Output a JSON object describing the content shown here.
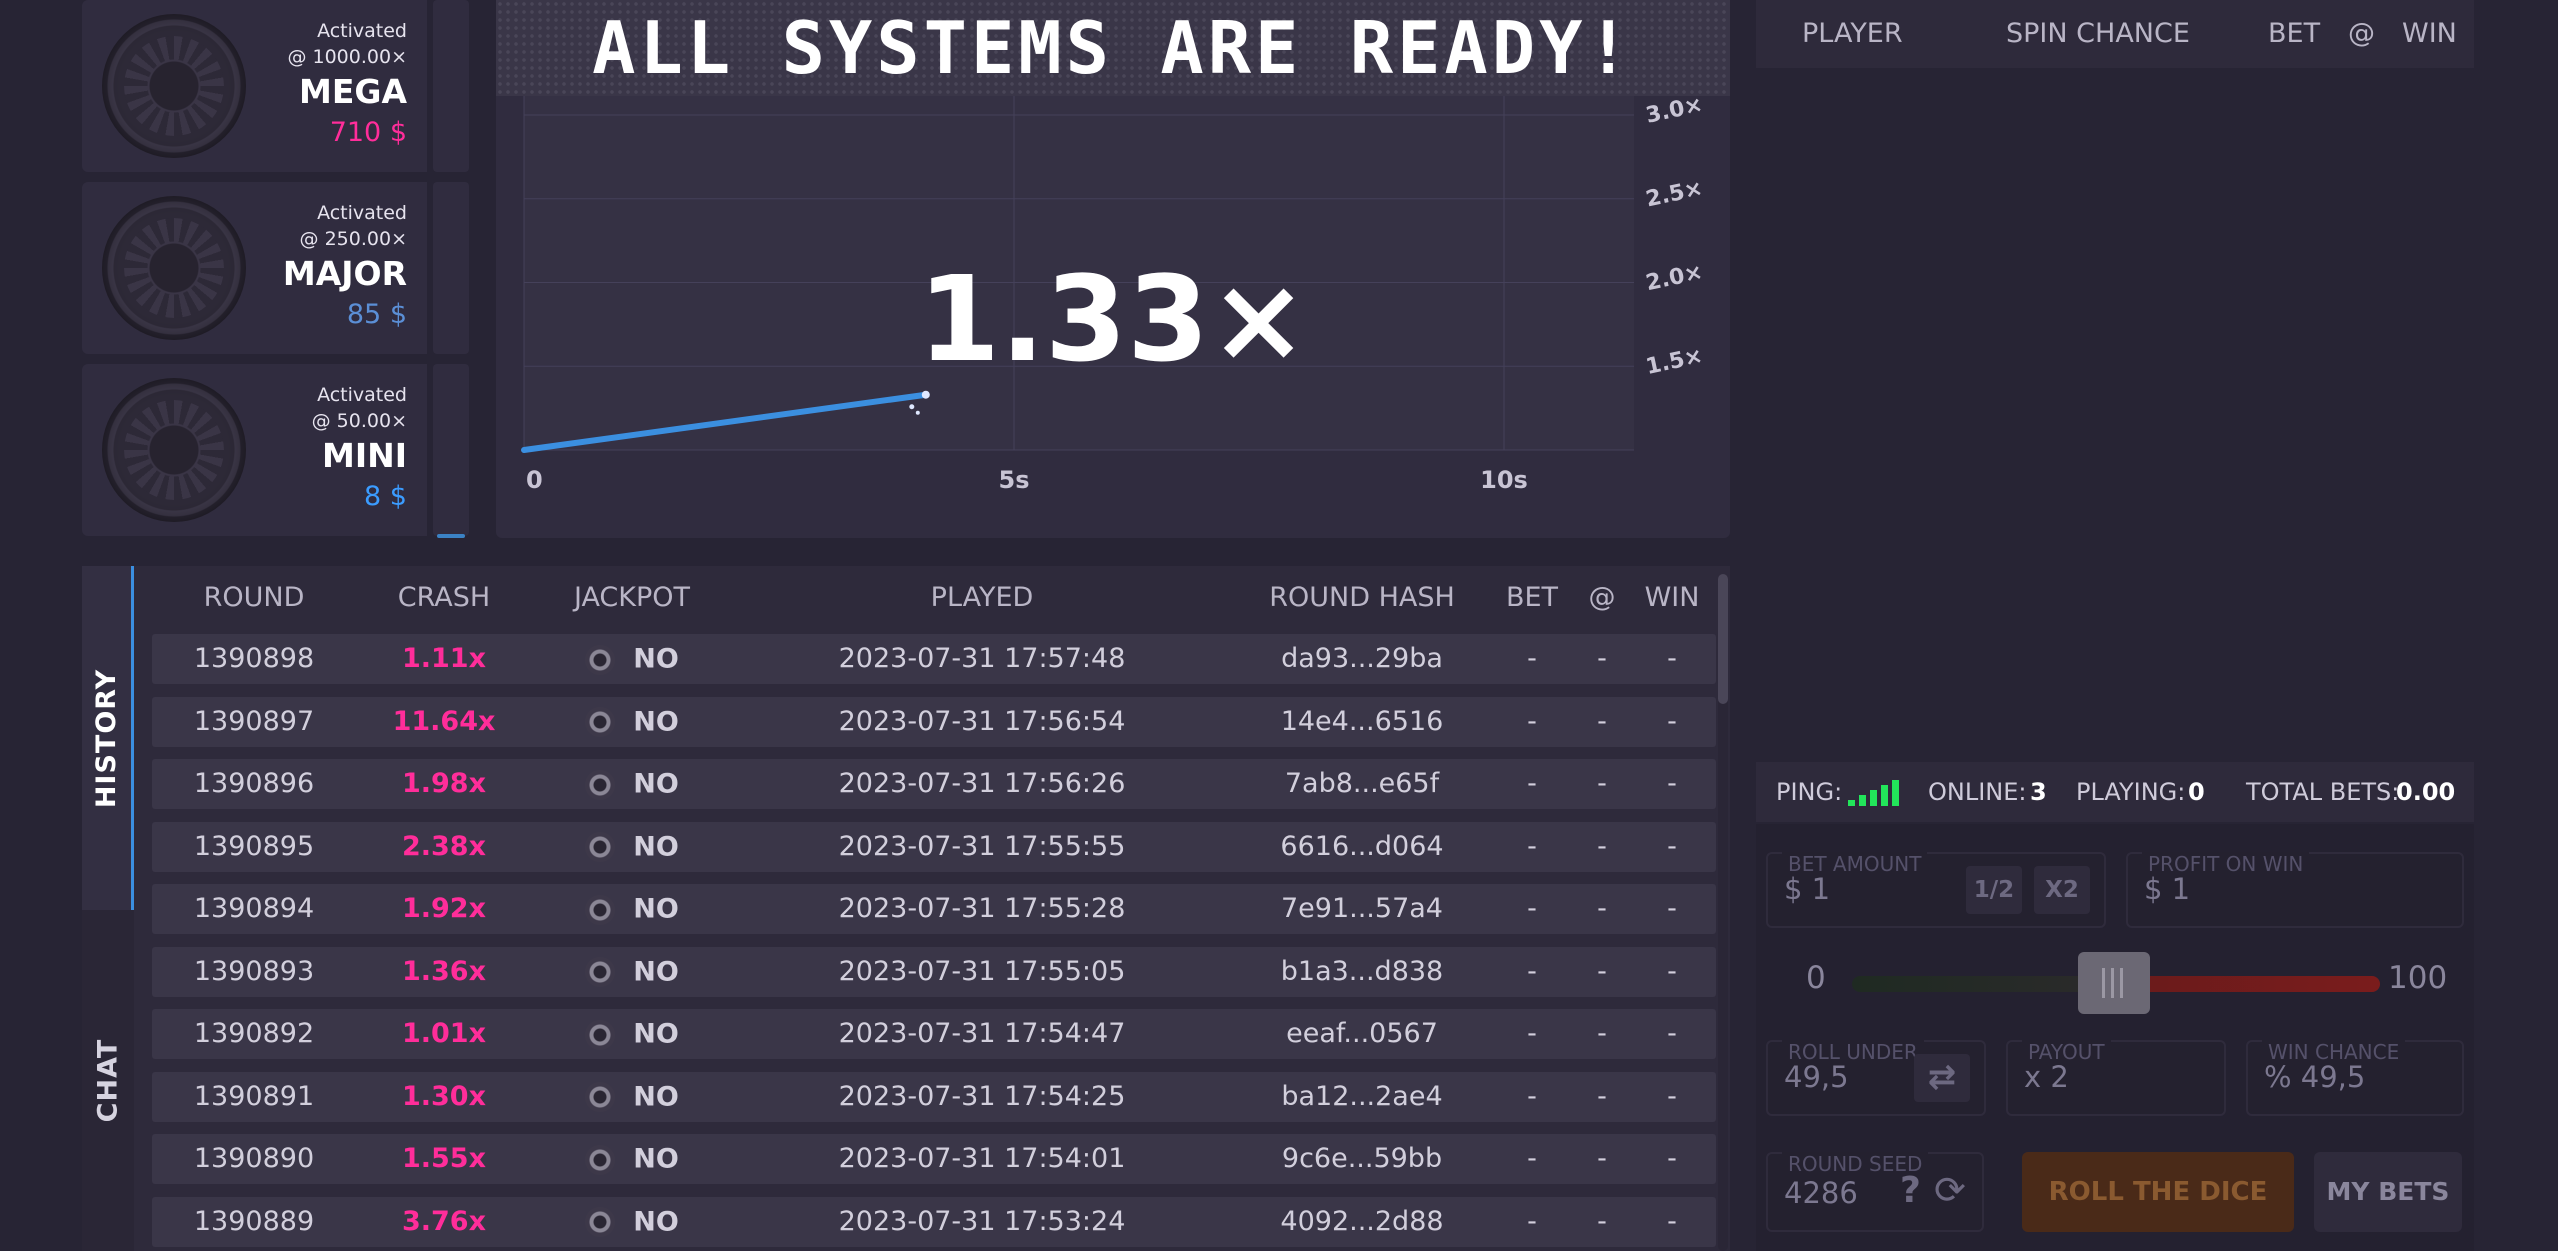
{
  "jackpots": [
    {
      "status": "Activated",
      "threshold": "@ 1000.00×",
      "name": "MEGA",
      "amount": "710 $",
      "color": "#ff2d9a"
    },
    {
      "status": "Activated",
      "threshold": "@ 250.00×",
      "name": "MAJOR",
      "amount": "85 $",
      "color": "#5b8fd6"
    },
    {
      "status": "Activated",
      "threshold": "@ 50.00×",
      "name": "MINI",
      "amount": "8 $",
      "color": "#3b9cff"
    }
  ],
  "banner": "ALL SYSTEMS ARE READY!",
  "graph": {
    "multiplier": "1.33×",
    "x_ticks": [
      "0",
      "5s",
      "10s"
    ],
    "y_ticks": [
      "3.0×",
      "2.5×",
      "2.0×",
      "1.5×"
    ]
  },
  "chart_data": {
    "type": "line",
    "x_ticks": [
      "0",
      "5s",
      "10s"
    ],
    "y_ticks": [
      "1.5×",
      "2.0×",
      "2.5×",
      "3.0×"
    ],
    "series": [
      {
        "x": [
          0,
          4.1
        ],
        "y": [
          1.0,
          1.33
        ],
        "color": "#3b8fe0"
      }
    ]
  },
  "bets_header": {
    "player": "PLAYER",
    "spin_chance": "SPIN CHANCE",
    "bet": "BET",
    "at": "@",
    "win": "WIN"
  },
  "tabs": {
    "history": "HISTORY",
    "chat": "CHAT"
  },
  "history": {
    "columns": [
      "ROUND",
      "CRASH",
      "JACKPOT",
      "PLAYED",
      "ROUND HASH",
      "BET",
      "@",
      "WIN"
    ],
    "rows": [
      {
        "round": "1390898",
        "crash": "1.11x",
        "jackpot": "NO",
        "played": "2023-07-31 17:57:48",
        "hash": "da93...29ba",
        "bet": "-",
        "at": "-",
        "win": "-"
      },
      {
        "round": "1390897",
        "crash": "11.64x",
        "jackpot": "NO",
        "played": "2023-07-31 17:56:54",
        "hash": "14e4...6516",
        "bet": "-",
        "at": "-",
        "win": "-"
      },
      {
        "round": "1390896",
        "crash": "1.98x",
        "jackpot": "NO",
        "played": "2023-07-31 17:56:26",
        "hash": "7ab8...e65f",
        "bet": "-",
        "at": "-",
        "win": "-"
      },
      {
        "round": "1390895",
        "crash": "2.38x",
        "jackpot": "NO",
        "played": "2023-07-31 17:55:55",
        "hash": "6616...d064",
        "bet": "-",
        "at": "-",
        "win": "-"
      },
      {
        "round": "1390894",
        "crash": "1.92x",
        "jackpot": "NO",
        "played": "2023-07-31 17:55:28",
        "hash": "7e91...57a4",
        "bet": "-",
        "at": "-",
        "win": "-"
      },
      {
        "round": "1390893",
        "crash": "1.36x",
        "jackpot": "NO",
        "played": "2023-07-31 17:55:05",
        "hash": "b1a3...d838",
        "bet": "-",
        "at": "-",
        "win": "-"
      },
      {
        "round": "1390892",
        "crash": "1.01x",
        "jackpot": "NO",
        "played": "2023-07-31 17:54:47",
        "hash": "eeaf...0567",
        "bet": "-",
        "at": "-",
        "win": "-"
      },
      {
        "round": "1390891",
        "crash": "1.30x",
        "jackpot": "NO",
        "played": "2023-07-31 17:54:25",
        "hash": "ba12...2ae4",
        "bet": "-",
        "at": "-",
        "win": "-"
      },
      {
        "round": "1390890",
        "crash": "1.55x",
        "jackpot": "NO",
        "played": "2023-07-31 17:54:01",
        "hash": "9c6e...59bb",
        "bet": "-",
        "at": "-",
        "win": "-"
      },
      {
        "round": "1390889",
        "crash": "3.76x",
        "jackpot": "NO",
        "played": "2023-07-31 17:53:24",
        "hash": "4092...2d88",
        "bet": "-",
        "at": "-",
        "win": "-"
      }
    ]
  },
  "status": {
    "ping_label": "PING:",
    "online_label": "ONLINE:",
    "online": "3",
    "playing_label": "PLAYING:",
    "playing": "0",
    "total_label": "TOTAL BETS:",
    "total": "0.00"
  },
  "dice": {
    "bet_amount_label": "BET AMOUNT",
    "bet_amount": "$ 1",
    "half": "1/2",
    "double": "X2",
    "profit_label": "PROFIT ON WIN",
    "profit": "$ 1",
    "slider_min": "0",
    "slider_max": "100",
    "slider_value": 49.5,
    "roll_under_label": "ROLL UNDER",
    "roll_under": "49,5",
    "payout_label": "PAYOUT",
    "payout": "x 2",
    "win_chance_label": "WIN CHANCE",
    "win_chance": "% 49,5",
    "seed_label": "ROUND SEED",
    "seed": "4286",
    "help": "?",
    "roll_button": "ROLL THE DICE",
    "my_bets": "MY BETS"
  }
}
